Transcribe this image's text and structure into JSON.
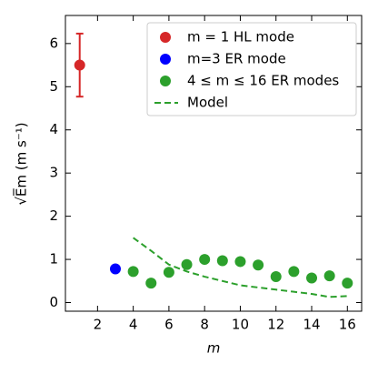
{
  "chart_data": {
    "type": "scatter",
    "xlabel": "m",
    "ylabel": "√E̅m (m s⁻¹)",
    "xlim": [
      0.2,
      16.8
    ],
    "xticks": [
      2,
      4,
      6,
      8,
      10,
      12,
      14,
      16
    ],
    "ylim": [
      -0.2,
      6.65
    ],
    "yticks": [
      0,
      1,
      2,
      3,
      4,
      5,
      6
    ],
    "legend": "upper right",
    "series": [
      {
        "name": "m = 1 HL mode",
        "color": "#d62728",
        "kind": "point",
        "x": [
          1
        ],
        "values": [
          5.5
        ],
        "errors": [
          0.73
        ]
      },
      {
        "name": "m=3 ER mode",
        "color": "#0000ff",
        "kind": "point",
        "x": [
          3
        ],
        "values": [
          0.78
        ]
      },
      {
        "name": "4 ≤ m ≤ 16 ER modes",
        "color": "#2ca02c",
        "kind": "point",
        "x": [
          4,
          5,
          6,
          7,
          8,
          9,
          10,
          11,
          12,
          13,
          14,
          15,
          16
        ],
        "values": [
          0.72,
          0.45,
          0.7,
          0.88,
          1.0,
          0.97,
          0.95,
          0.87,
          0.6,
          0.72,
          0.57,
          0.62,
          0.45
        ]
      },
      {
        "name": "Model",
        "color": "#2ca02c",
        "kind": "line",
        "x": [
          4,
          5,
          6,
          7,
          8,
          9,
          10,
          11,
          12,
          13,
          14,
          15,
          16
        ],
        "values": [
          1.5,
          1.2,
          0.88,
          0.72,
          0.6,
          0.5,
          0.4,
          0.35,
          0.3,
          0.25,
          0.2,
          0.13,
          0.15
        ]
      }
    ]
  }
}
